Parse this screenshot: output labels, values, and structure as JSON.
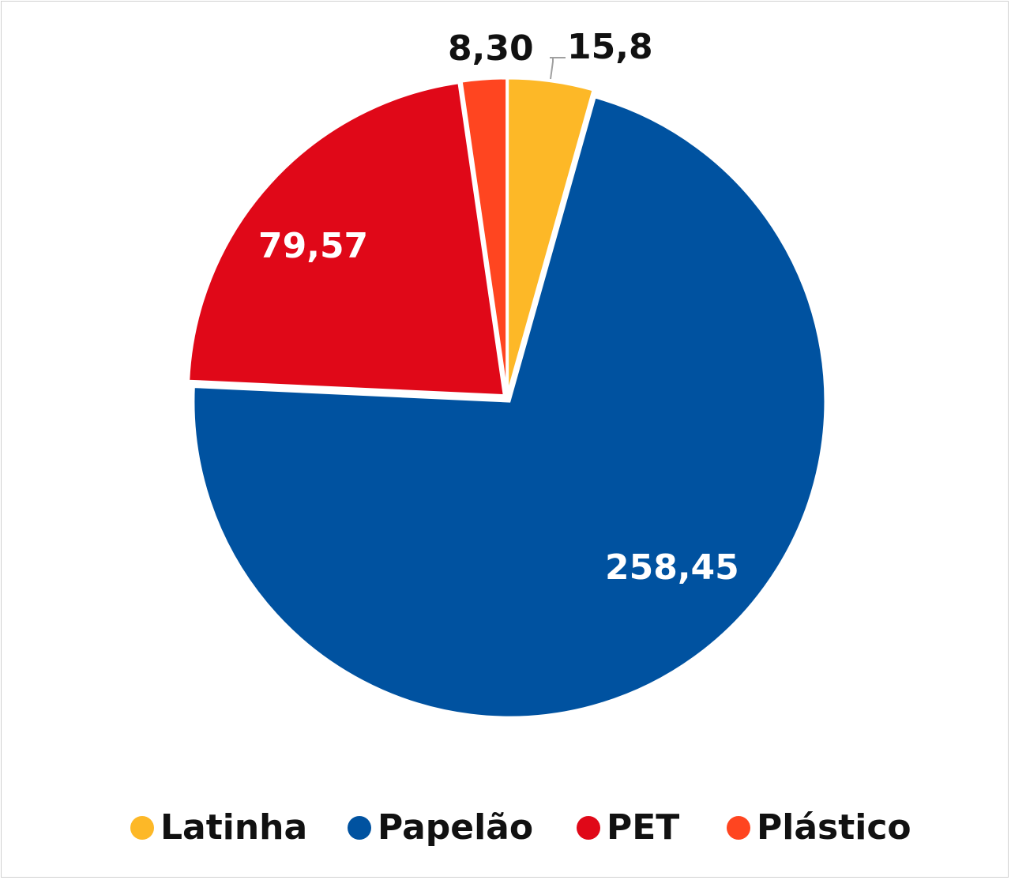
{
  "chart_data": {
    "type": "pie",
    "title": "",
    "categories": [
      "Latinha",
      "Papelão",
      "PET",
      "Plástico"
    ],
    "values": [
      15.8,
      258.45,
      79.57,
      8.3
    ],
    "data_labels": [
      "15,8",
      "258,45",
      "79,57",
      "8,30"
    ],
    "colors": [
      "#FDB827",
      "#0052A0",
      "#E00818",
      "#FF4520"
    ],
    "start_angle_deg": 0,
    "direction": "clockwise",
    "legend_position": "bottom"
  }
}
